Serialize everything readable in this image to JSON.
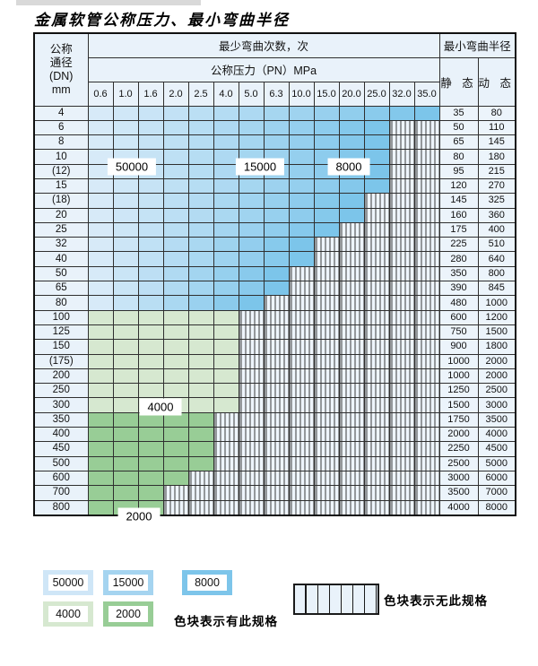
{
  "title": "金属软管公称压力、最小弯曲半径",
  "table": {
    "header": {
      "dn_lines": [
        "公称",
        "通径",
        "(DN)",
        "mm"
      ],
      "cycles_label": "最少弯曲次数，次",
      "pressure_label": "公称压力（PN）MPa",
      "radius_label": "最小弯曲半径",
      "static_label": "静 态",
      "dynamic_label": "动 态",
      "pressures": [
        "0.6",
        "1.0",
        "1.6",
        "2.0",
        "2.5",
        "4.0",
        "5.0",
        "6.3",
        "10.0",
        "15.0",
        "20.0",
        "25.0",
        "32.0",
        "35.0"
      ]
    },
    "rows": [
      {
        "dn": "4",
        "cols": 13,
        "zone": "b",
        "st": "35",
        "dy": "80"
      },
      {
        "dn": "6",
        "cols": 11,
        "zone": "b",
        "st": "50",
        "dy": "110"
      },
      {
        "dn": "8",
        "cols": 11,
        "zone": "b",
        "st": "65",
        "dy": "145"
      },
      {
        "dn": "10",
        "cols": 11,
        "zone": "b",
        "st": "80",
        "dy": "180"
      },
      {
        "dn": "(12)",
        "cols": 11,
        "zone": "b",
        "st": "95",
        "dy": "215"
      },
      {
        "dn": "15",
        "cols": 11,
        "zone": "b",
        "st": "120",
        "dy": "270"
      },
      {
        "dn": "(18)",
        "cols": 10,
        "zone": "b",
        "st": "145",
        "dy": "325"
      },
      {
        "dn": "20",
        "cols": 10,
        "zone": "b",
        "st": "160",
        "dy": "360"
      },
      {
        "dn": "25",
        "cols": 9,
        "zone": "b",
        "st": "175",
        "dy": "400"
      },
      {
        "dn": "32",
        "cols": 8,
        "zone": "b",
        "st": "225",
        "dy": "510"
      },
      {
        "dn": "40",
        "cols": 8,
        "zone": "b",
        "st": "280",
        "dy": "640"
      },
      {
        "dn": "50",
        "cols": 7,
        "zone": "b",
        "st": "350",
        "dy": "800"
      },
      {
        "dn": "65",
        "cols": 7,
        "zone": "b",
        "st": "390",
        "dy": "845"
      },
      {
        "dn": "80",
        "cols": 6,
        "zone": "b",
        "st": "480",
        "dy": "1000"
      },
      {
        "dn": "100",
        "cols": 5,
        "zone": "g4",
        "st": "600",
        "dy": "1200"
      },
      {
        "dn": "125",
        "cols": 5,
        "zone": "g4",
        "st": "750",
        "dy": "1500"
      },
      {
        "dn": "150",
        "cols": 5,
        "zone": "g4",
        "st": "900",
        "dy": "1800"
      },
      {
        "dn": "(175)",
        "cols": 5,
        "zone": "g4",
        "st": "1000",
        "dy": "2000"
      },
      {
        "dn": "200",
        "cols": 5,
        "zone": "g4",
        "st": "1000",
        "dy": "2000"
      },
      {
        "dn": "250",
        "cols": 5,
        "zone": "g4",
        "st": "1250",
        "dy": "2500"
      },
      {
        "dn": "300",
        "cols": 5,
        "zone": "g4",
        "st": "1500",
        "dy": "3000"
      },
      {
        "dn": "350",
        "cols": 4,
        "zone": "g2",
        "st": "1750",
        "dy": "3500"
      },
      {
        "dn": "400",
        "cols": 4,
        "zone": "g2",
        "st": "2000",
        "dy": "4000"
      },
      {
        "dn": "450",
        "cols": 4,
        "zone": "g2",
        "st": "2250",
        "dy": "4500"
      },
      {
        "dn": "500",
        "cols": 4,
        "zone": "g2",
        "st": "2500",
        "dy": "5000"
      },
      {
        "dn": "600",
        "cols": 3,
        "zone": "g2",
        "st": "3000",
        "dy": "6000"
      },
      {
        "dn": "700",
        "cols": 2,
        "zone": "g2",
        "st": "3500",
        "dy": "7000"
      },
      {
        "dn": "800",
        "cols": 2,
        "zone": "g2",
        "st": "4000",
        "dy": "8000"
      }
    ]
  },
  "legend": {
    "items": [
      {
        "value": "50000",
        "color": "#cfe6f7"
      },
      {
        "value": "15000",
        "color": "#a5d4f0"
      },
      {
        "value": "8000",
        "color": "#7dc5ea"
      },
      {
        "value": "4000",
        "color": "#d6e8d0"
      },
      {
        "value": "2000",
        "color": "#98cd96"
      }
    ],
    "has_spec_label": "色块表示有此规格",
    "no_spec_label": "色块表示无此规格"
  },
  "colors": {
    "blue_light": "#d7eaf8",
    "blue_dark": "#7cc5ea",
    "green_light": "#d6e8d0",
    "green_dark": "#98cd96"
  }
}
